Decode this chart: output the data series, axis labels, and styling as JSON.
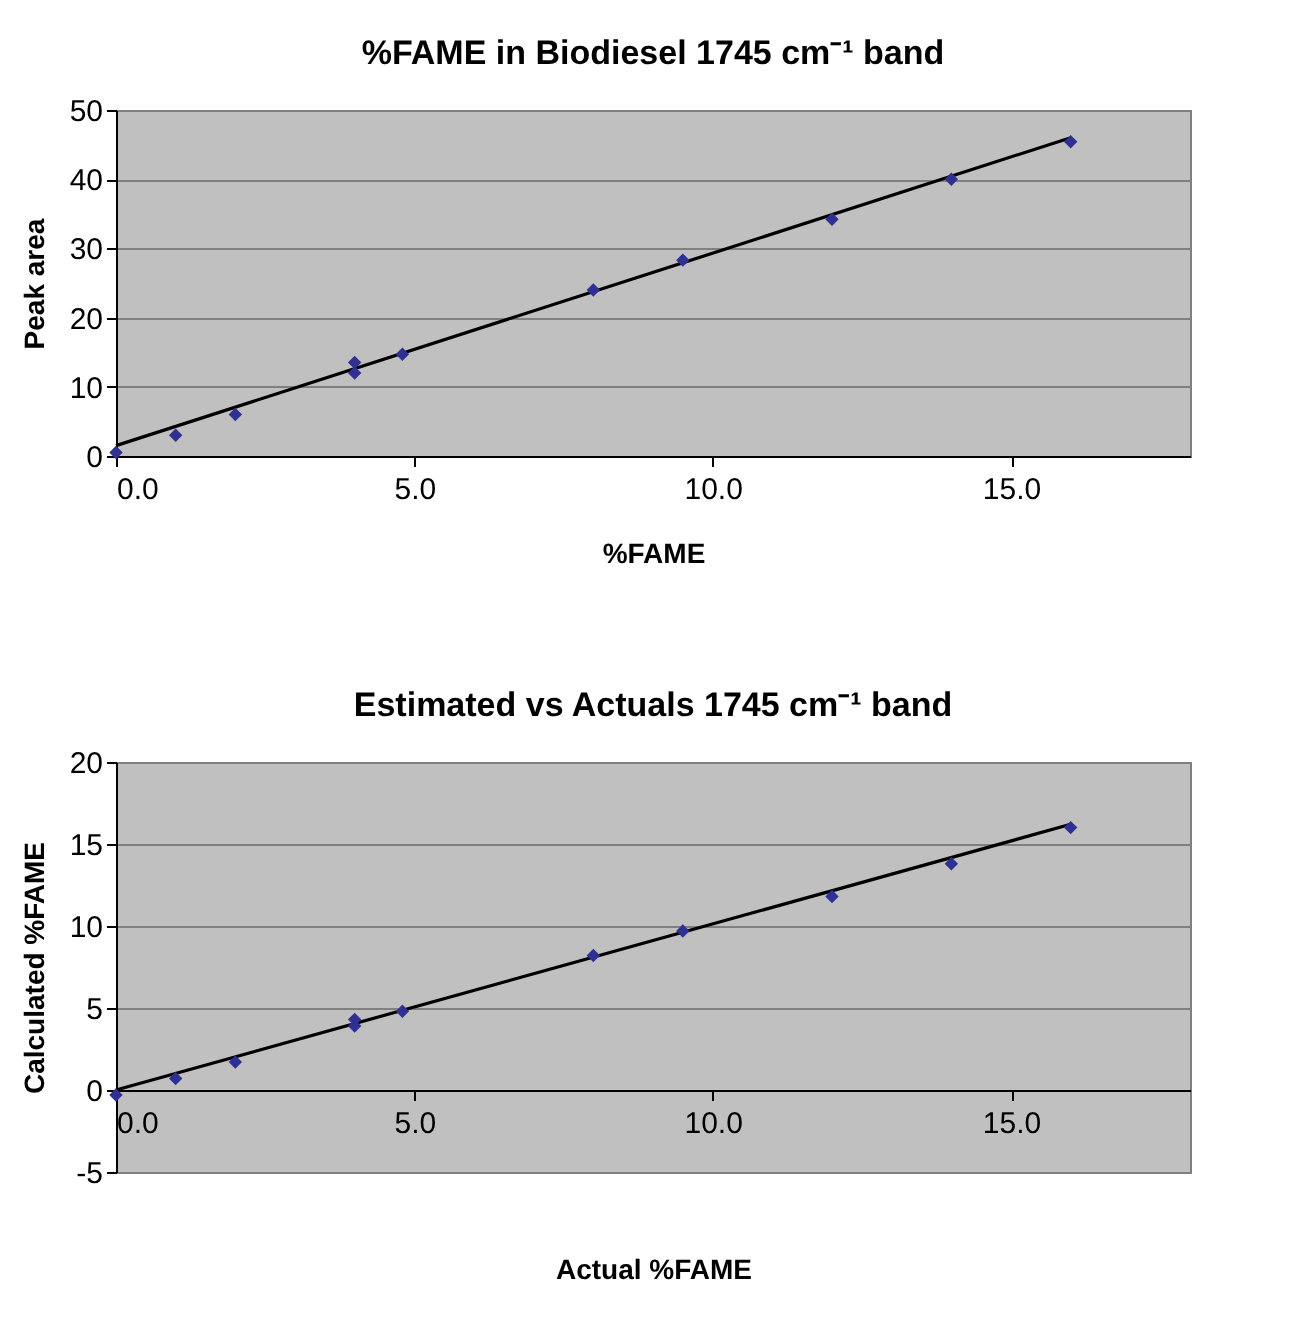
{
  "chart_data": [
    {
      "type": "scatter",
      "title": "%FAME in Biodiesel 1745 cm⁻¹ band",
      "xlabel": "%FAME",
      "ylabel": "Peak  area",
      "grid": "y",
      "xlim": [
        0,
        18
      ],
      "xticks": [
        {
          "value": 0,
          "label": "0.0"
        },
        {
          "value": 5,
          "label": "5.0"
        },
        {
          "value": 10,
          "label": "10.0"
        },
        {
          "value": 15,
          "label": "15.0"
        }
      ],
      "ylim": [
        0,
        50
      ],
      "yticks": [
        0,
        10,
        20,
        30,
        40,
        50
      ],
      "series": [
        {
          "marker": "diamond",
          "color": "#2e3192",
          "x": [
            0,
            1,
            2,
            4,
            4,
            4.8,
            8,
            9.5,
            12,
            14,
            16
          ],
          "values": [
            0.5,
            3,
            6,
            13.5,
            12,
            14.7,
            24,
            28.3,
            34.2,
            40,
            45.4
          ]
        },
        {
          "type": "line",
          "marker": "none",
          "color": "#000000",
          "x": [
            0,
            16
          ],
          "values": [
            1.5,
            46
          ]
        }
      ]
    },
    {
      "type": "scatter",
      "title": "Estimated vs Actuals 1745 cm⁻¹  band",
      "xlabel": "Actual %FAME",
      "ylabel": "Calculated %FAME",
      "grid": "y",
      "xlim": [
        0,
        18
      ],
      "xticks": [
        {
          "value": 0,
          "label": "0.0"
        },
        {
          "value": 5,
          "label": "5.0"
        },
        {
          "value": 10,
          "label": "10.0"
        },
        {
          "value": 15,
          "label": "15.0"
        }
      ],
      "ylim": [
        -5,
        20
      ],
      "yticks": [
        -5,
        0,
        5,
        10,
        15,
        20
      ],
      "series": [
        {
          "marker": "diamond",
          "color": "#2e3192",
          "x": [
            0,
            1,
            2,
            4,
            4,
            4.8,
            8,
            9.5,
            12,
            14,
            16
          ],
          "values": [
            -0.3,
            0.7,
            1.7,
            4.3,
            3.9,
            4.8,
            8.2,
            9.7,
            11.8,
            13.8,
            16
          ]
        },
        {
          "type": "line",
          "marker": "none",
          "color": "#000000",
          "x": [
            0,
            16
          ],
          "values": [
            0,
            16.2
          ]
        }
      ]
    }
  ]
}
